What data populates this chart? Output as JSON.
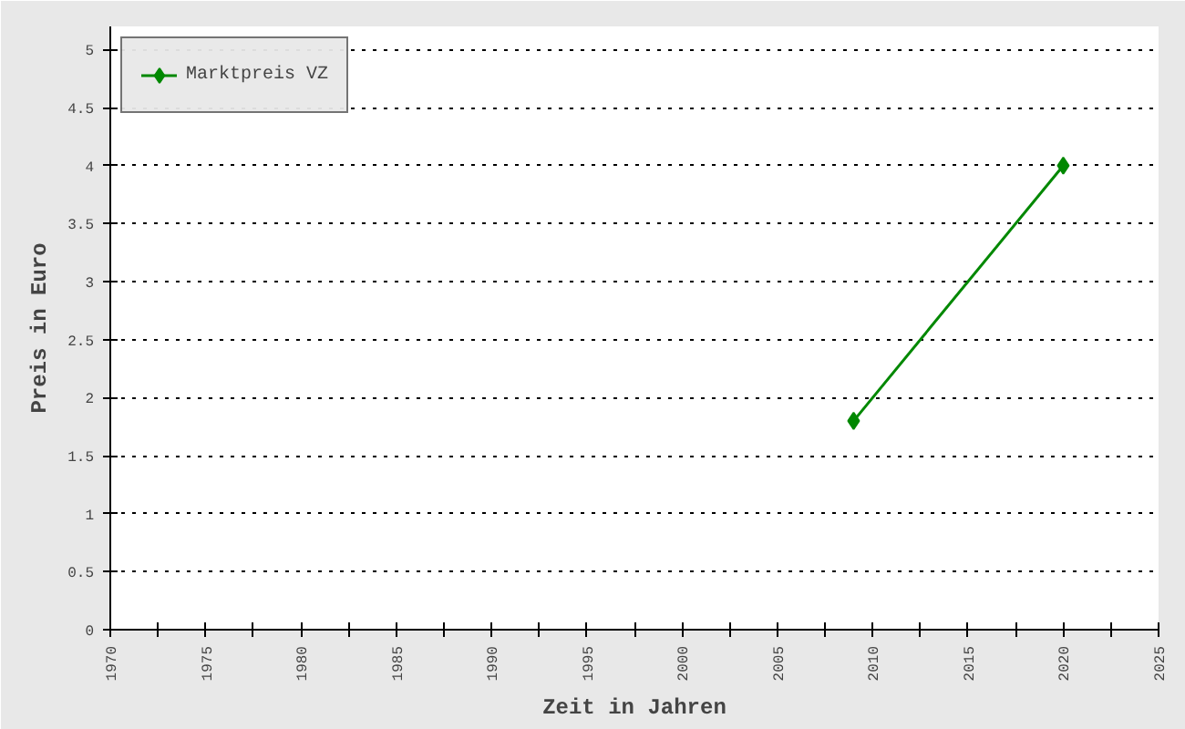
{
  "chart_data": {
    "type": "line",
    "xlabel": "Zeit in Jahren",
    "ylabel": "Preis in Euro",
    "x": [
      2009,
      2020
    ],
    "series": [
      {
        "name": "Marktpreis VZ",
        "color": "#008800",
        "values": [
          1.8,
          4
        ]
      }
    ],
    "xlim": [
      1970,
      2025
    ],
    "xticks": [
      1970,
      {
        "value": 1972.5,
        "label": null
      },
      1975,
      {
        "value": 1977.5,
        "label": null
      },
      1980,
      {
        "value": 1982.5,
        "label": null
      },
      1985,
      {
        "value": 1987.5,
        "label": null
      },
      1990,
      {
        "value": 1992.5,
        "label": null
      },
      1995,
      {
        "value": 1997.5,
        "label": null
      },
      2000,
      {
        "value": 2002.5,
        "label": null
      },
      2005,
      {
        "value": 2007.5,
        "label": null
      },
      2010,
      {
        "value": 2012.5,
        "label": null
      },
      2015,
      {
        "value": 2017.5,
        "label": null
      },
      2020,
      {
        "value": 2022.5,
        "label": null
      },
      2025
    ],
    "ylim": [
      0,
      5.2
    ],
    "yticks": [
      0,
      0.5,
      1,
      1.5,
      2,
      2.5,
      3,
      3.5,
      4,
      4.5,
      5
    ],
    "grid": "y",
    "legend": "top left",
    "marker": "diamond",
    "line_style": "solid"
  }
}
